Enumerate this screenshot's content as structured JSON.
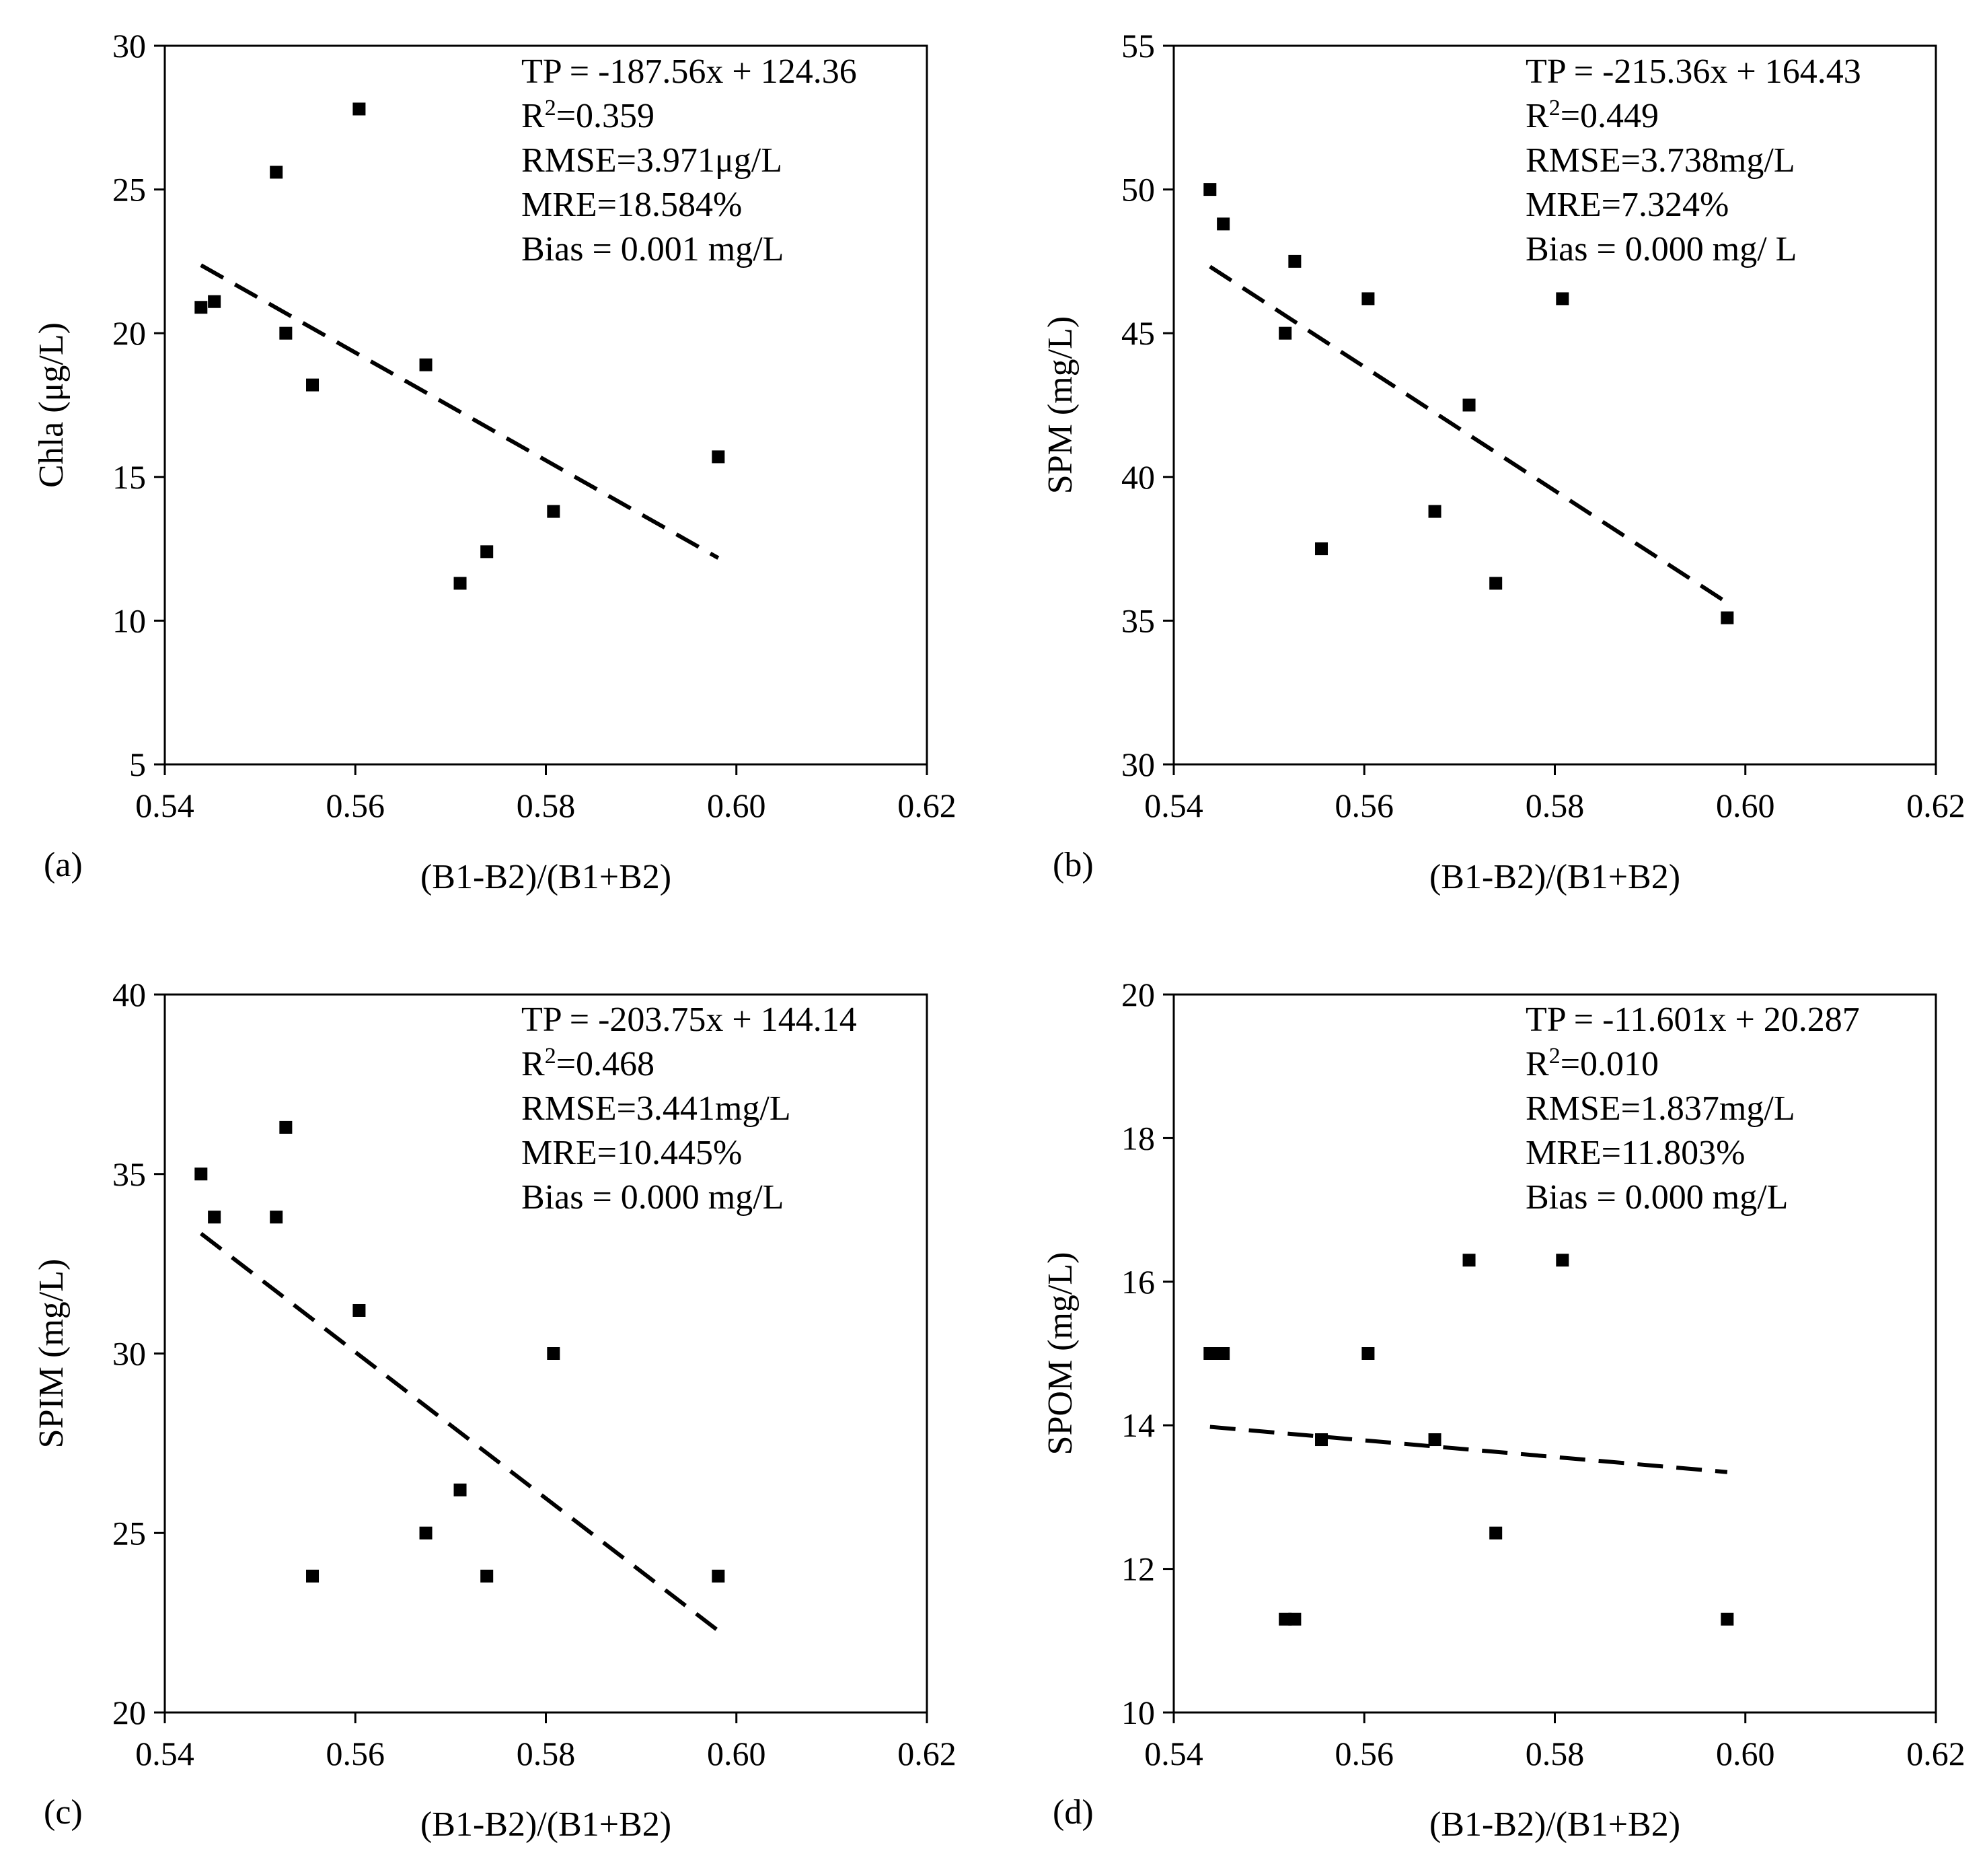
{
  "figure": {
    "colors": {
      "marker": "#000000",
      "fit_line": "#000000",
      "axis": "#000000",
      "background": "#ffffff"
    }
  },
  "chart_data": [
    {
      "type": "scatter",
      "panel_label": "(a)",
      "xlabel": "(B1-B2)/(B1+B2)",
      "ylabel": "Chla (μg/L)",
      "xlim": [
        0.54,
        0.62
      ],
      "ylim": [
        5,
        30
      ],
      "xticks": [
        "0.54",
        "0.56",
        "0.58",
        "0.60",
        "0.62"
      ],
      "yticks": [
        "5",
        "10",
        "15",
        "20",
        "25",
        "30"
      ],
      "x": [
        0.5438,
        0.5452,
        0.5517,
        0.5527,
        0.5555,
        0.5604,
        0.5674,
        0.571,
        0.5738,
        0.5808,
        0.5981
      ],
      "y": [
        20.9,
        21.1,
        25.6,
        20.0,
        18.2,
        27.8,
        18.9,
        11.3,
        12.4,
        13.8,
        15.7
      ],
      "fit": {
        "slope": -187.56,
        "intercept": 124.36,
        "x_range": [
          0.5438,
          0.5981
        ]
      },
      "annotations": [
        "TP = -187.56x + 124.36",
        "=0.359",
        "RMSE=3.971μg/L",
        "MRE=18.584%",
        "Bias = 0.001 mg/L"
      ]
    },
    {
      "type": "scatter",
      "panel_label": "(b)",
      "xlabel": "(B1-B2)/(B1+B2)",
      "ylabel": "SPM (mg/L)",
      "xlim": [
        0.54,
        0.62
      ],
      "ylim": [
        30,
        55
      ],
      "xticks": [
        "0.54",
        "0.56",
        "0.58",
        "0.60",
        "0.62"
      ],
      "yticks": [
        "30",
        "35",
        "40",
        "45",
        "50",
        "55"
      ],
      "x": [
        0.5438,
        0.5452,
        0.5517,
        0.5527,
        0.5555,
        0.5604,
        0.5674,
        0.571,
        0.5738,
        0.5808,
        0.5981
      ],
      "y": [
        50.0,
        48.8,
        45.0,
        47.5,
        37.5,
        46.2,
        38.8,
        42.5,
        36.3,
        46.2,
        35.1
      ],
      "fit": {
        "slope": -215.36,
        "intercept": 164.43,
        "x_range": [
          0.5438,
          0.5981
        ]
      },
      "annotations": [
        "TP = -215.36x + 164.43",
        "=0.449",
        "RMSE=3.738mg/L",
        "MRE=7.324%",
        "Bias = 0.000 mg/ L"
      ]
    },
    {
      "type": "scatter",
      "panel_label": "(c)",
      "xlabel": "(B1-B2)/(B1+B2)",
      "ylabel": "SPIM (mg/L)",
      "xlim": [
        0.54,
        0.62
      ],
      "ylim": [
        20,
        40
      ],
      "xticks": [
        "0.54",
        "0.56",
        "0.58",
        "0.60",
        "0.62"
      ],
      "yticks": [
        "20",
        "25",
        "30",
        "35",
        "40"
      ],
      "x": [
        0.5438,
        0.5452,
        0.5517,
        0.5527,
        0.5555,
        0.5604,
        0.5674,
        0.571,
        0.5738,
        0.5808,
        0.5981
      ],
      "y": [
        35.0,
        33.8,
        33.8,
        36.3,
        23.8,
        31.2,
        25.0,
        26.2,
        23.8,
        30.0,
        23.8
      ],
      "fit": {
        "slope": -203.75,
        "intercept": 144.14,
        "x_range": [
          0.5438,
          0.5981
        ]
      },
      "annotations": [
        "TP = -203.75x + 144.14",
        "=0.468",
        "RMSE=3.441mg/L",
        "MRE=10.445%",
        "Bias = 0.000 mg/L"
      ]
    },
    {
      "type": "scatter",
      "panel_label": "(d)",
      "xlabel": "(B1-B2)/(B1+B2)",
      "ylabel": "SPOM (mg/L)",
      "xlim": [
        0.54,
        0.62
      ],
      "ylim": [
        10,
        20
      ],
      "xticks": [
        "0.54",
        "0.56",
        "0.58",
        "0.60",
        "0.62"
      ],
      "yticks": [
        "10",
        "12",
        "14",
        "16",
        "18",
        "20"
      ],
      "x": [
        0.5438,
        0.5452,
        0.5445,
        0.5517,
        0.5527,
        0.5555,
        0.5604,
        0.5674,
        0.571,
        0.5738,
        0.5808,
        0.5981
      ],
      "y": [
        15.0,
        15.0,
        15.0,
        11.3,
        11.3,
        13.8,
        15.0,
        13.8,
        16.3,
        12.5,
        16.3,
        11.3
      ],
      "fit": {
        "slope": -11.601,
        "intercept": 20.287,
        "x_range": [
          0.5438,
          0.5981
        ]
      },
      "annotations": [
        "TP = -11.601x + 20.287",
        "=0.010",
        "RMSE=1.837mg/L",
        "MRE=11.803%",
        "Bias = 0.000 mg/L"
      ]
    }
  ]
}
